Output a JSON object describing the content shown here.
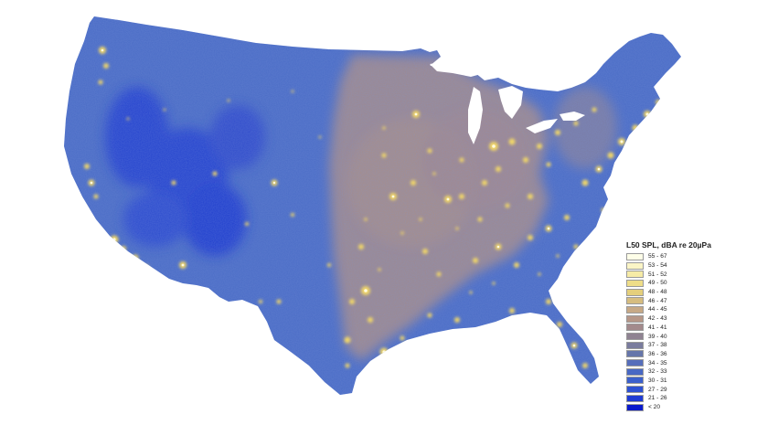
{
  "legend": {
    "title": "L50 SPL, dBA re 20µPa",
    "items": [
      {
        "label": "55 - 67",
        "color": "#fefee8"
      },
      {
        "label": "53 - 54",
        "color": "#fbf5c6"
      },
      {
        "label": "51 - 52",
        "color": "#f6eba6"
      },
      {
        "label": "49 - 50",
        "color": "#eedd88"
      },
      {
        "label": "48 - 48",
        "color": "#e4cf7c"
      },
      {
        "label": "46 - 47",
        "color": "#d6bd80"
      },
      {
        "label": "44 - 45",
        "color": "#c7a986"
      },
      {
        "label": "42 - 43",
        "color": "#b69788"
      },
      {
        "label": "41 - 41",
        "color": "#a38a8c"
      },
      {
        "label": "39 - 40",
        "color": "#8f8392"
      },
      {
        "label": "37 - 38",
        "color": "#7a7c9e"
      },
      {
        "label": "36 - 36",
        "color": "#6676aa"
      },
      {
        "label": "34 - 35",
        "color": "#566ebb"
      },
      {
        "label": "32 - 33",
        "color": "#4868c4"
      },
      {
        "label": "30 - 31",
        "color": "#3b60cc"
      },
      {
        "label": "27 - 29",
        "color": "#2e52d2"
      },
      {
        "label": "21 - 26",
        "color": "#1f3cd4"
      },
      {
        "label": "< 20",
        "color": "#0a1acc"
      }
    ]
  },
  "map": {
    "colors": {
      "base_blue": "#4a6cc6",
      "deep_blue": "#1f3bd0",
      "central_taupe": "#a38b8a",
      "urban_yellow": "#f5df6a",
      "urban_core": "#fffbe0"
    }
  }
}
